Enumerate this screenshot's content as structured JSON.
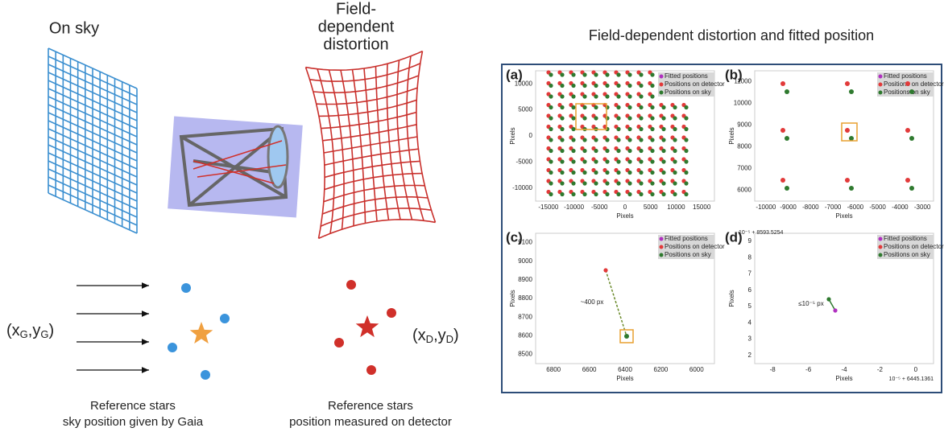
{
  "left": {
    "on_sky": "On sky",
    "distortion": [
      "Field-",
      "dependent",
      "distortion"
    ],
    "coord_sky": [
      "(x",
      "G",
      ",y",
      "G",
      ")"
    ],
    "coord_det": [
      "(x",
      "D",
      ",y",
      "D",
      ")"
    ],
    "caption_sky": [
      "Reference stars",
      "sky position given by Gaia"
    ],
    "caption_det": [
      "Reference stars",
      "position measured on detector"
    ]
  },
  "right": {
    "title": "Field-dependent distortion and fitted position",
    "legend": [
      "Fitted positions",
      "Positions on detector",
      "Positions on sky"
    ],
    "panels": [
      {
        "label": "(a)",
        "xlabel": "Pixels",
        "ylabel": "Pixels",
        "xticks": [
          "-15000",
          "-10000",
          "-5000",
          "0",
          "5000",
          "10000",
          "15000"
        ],
        "yticks": [
          "10000",
          "5000",
          "0",
          "-5000",
          "-10000"
        ]
      },
      {
        "label": "(b)",
        "xlabel": "Pixels",
        "ylabel": "Pixels",
        "xticks": [
          "-10000",
          "-9000",
          "-8000",
          "-7000",
          "-6000",
          "-5000",
          "-4000",
          "-3000"
        ],
        "yticks": [
          "11000",
          "10000",
          "9000",
          "8000",
          "7000",
          "6000"
        ]
      },
      {
        "label": "(c)",
        "xlabel": "Pixels",
        "ylabel": "Pixels",
        "xticks": [
          "6800",
          "6600",
          "6400",
          "6200",
          "6000"
        ],
        "yticks": [
          "9100",
          "9000",
          "8900",
          "8800",
          "8700",
          "8600",
          "8500"
        ],
        "annotation": "~400 px"
      },
      {
        "label": "(d)",
        "xlabel": "Pixels",
        "ylabel": "Pixels",
        "xticks": [
          "-8",
          "-6",
          "-4",
          "-2",
          "0"
        ],
        "yticks": [
          "9",
          "8",
          "7",
          "6",
          "5",
          "4",
          "3",
          "2"
        ],
        "annotation": "≤10⁻⁵ px",
        "offset_y": "10⁻⁵ + 8593.5254",
        "offset_x": "10⁻⁵ + 6445.1361"
      }
    ]
  }
}
